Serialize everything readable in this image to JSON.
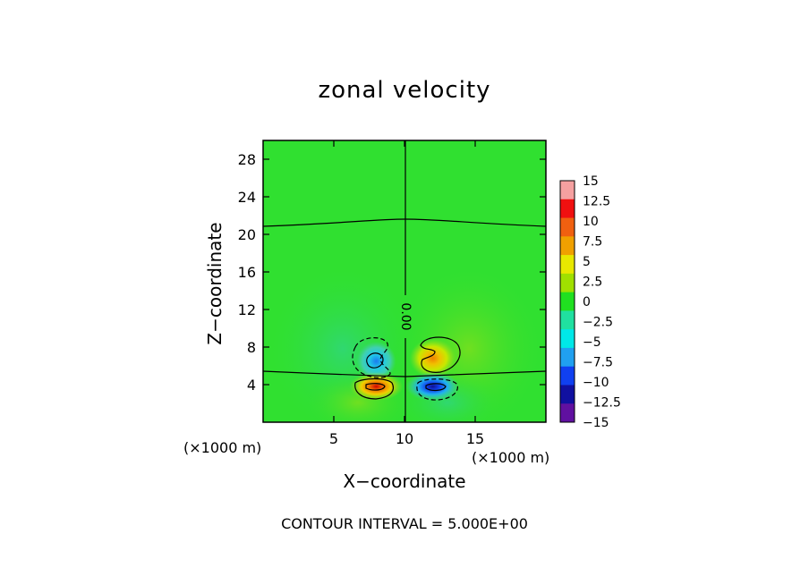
{
  "chart_data": {
    "type": "heatmap",
    "title": "zonal velocity",
    "xlabel": "X−coordinate",
    "ylabel": "Z−coordinate",
    "x_unit_left": "(×1000 m)",
    "x_unit_right": "(×1000 m)",
    "xlim": [
      0,
      20
    ],
    "ylim": [
      0,
      30
    ],
    "x_ticks": [
      5,
      10,
      15
    ],
    "y_ticks": [
      4,
      8,
      12,
      16,
      20,
      24,
      28
    ],
    "contour_label": "0.00",
    "footer": "CONTOUR INTERVAL = 5.000E+00",
    "colorbar": {
      "labels": [
        "15",
        "12.5",
        "10",
        "7.5",
        "5",
        "2.5",
        "0",
        "−2.5",
        "−5",
        "−7.5",
        "−10",
        "−12.5",
        "−15"
      ],
      "colors": [
        "#f5a0a0",
        "#f01010",
        "#f06010",
        "#f0a000",
        "#e8e800",
        "#a0e000",
        "#20e020",
        "#20e0a0",
        "#00e8e8",
        "#20a0f0",
        "#1040f0",
        "#1010a0",
        "#6010a0"
      ]
    },
    "features": [
      {
        "x": 8.0,
        "z": 6.5,
        "value": -7.5
      },
      {
        "x": 8.0,
        "z": 3.8,
        "value": 10
      },
      {
        "x": 12.0,
        "z": 6.8,
        "value": 7.5
      },
      {
        "x": 12.0,
        "z": 3.8,
        "value": -12.5
      }
    ]
  }
}
